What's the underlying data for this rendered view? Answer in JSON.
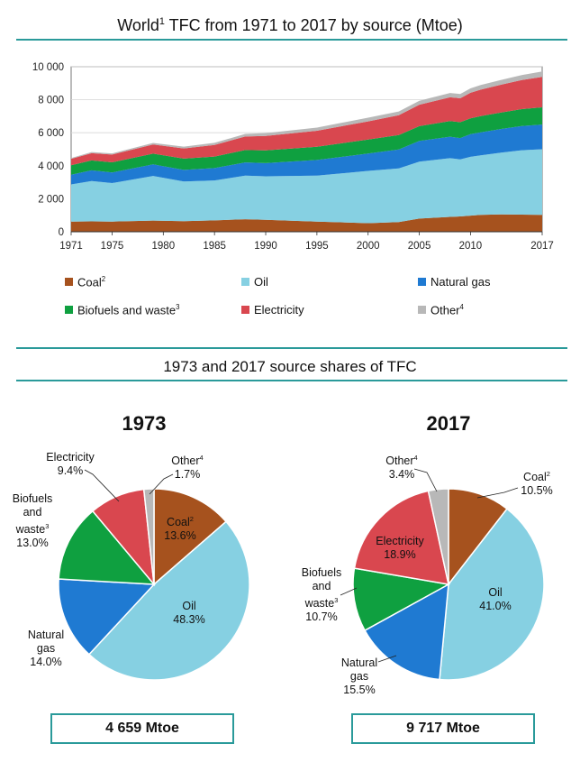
{
  "chart_data": [
    {
      "type": "area",
      "title": "World",
      "title_sup": "1",
      "title_rest": " TFC from 1971 to 2017 by source (Mtoe)",
      "x_ticks": [
        "1971",
        "1975",
        "1980",
        "1985",
        "1990",
        "1995",
        "2000",
        "2005",
        "2010",
        "2017"
      ],
      "y_ticks": [
        "10 000",
        "8 000",
        "6 000",
        "4 000",
        "2 000",
        "0"
      ],
      "ylim": [
        0,
        10000
      ],
      "xlim": [
        1971,
        2017
      ],
      "stacked": true,
      "x": [
        1971,
        1973,
        1975,
        1979,
        1982,
        1985,
        1988,
        1990,
        1995,
        2000,
        2003,
        2005,
        2008,
        2009,
        2010,
        2011,
        2013,
        2015,
        2017
      ],
      "series": [
        {
          "name": "Coal",
          "sup": "2",
          "color": "#a6521e",
          "values": [
            620,
            630,
            620,
            680,
            640,
            690,
            760,
            720,
            620,
            520,
            590,
            800,
            900,
            930,
            980,
            1030,
            1050,
            1040,
            1020
          ]
        },
        {
          "name": "Oil",
          "sup": "",
          "color": "#86d0e2",
          "values": [
            2250,
            2440,
            2330,
            2700,
            2410,
            2420,
            2640,
            2640,
            2780,
            3170,
            3250,
            3450,
            3560,
            3450,
            3560,
            3600,
            3750,
            3900,
            3980
          ]
        },
        {
          "name": "Natural gas",
          "sup": "",
          "color": "#1f7ad2",
          "values": [
            590,
            650,
            640,
            700,
            700,
            750,
            800,
            800,
            950,
            1050,
            1150,
            1250,
            1300,
            1300,
            1370,
            1400,
            1430,
            1470,
            1500
          ]
        },
        {
          "name": "Biofuels and waste",
          "sup": "3",
          "color": "#0fa040",
          "values": [
            570,
            600,
            620,
            650,
            680,
            700,
            750,
            770,
            800,
            850,
            870,
            900,
            950,
            960,
            960,
            980,
            1000,
            1020,
            1040
          ]
        },
        {
          "name": "Electricity",
          "sup": "",
          "color": "#d9474f",
          "values": [
            390,
            440,
            470,
            560,
            620,
            700,
            820,
            880,
            970,
            1100,
            1200,
            1300,
            1440,
            1450,
            1550,
            1600,
            1680,
            1760,
            1840
          ]
        },
        {
          "name": "Other",
          "sup": "4",
          "color": "#b8b8b8",
          "values": [
            50,
            70,
            70,
            90,
            110,
            130,
            160,
            170,
            190,
            220,
            230,
            240,
            260,
            260,
            270,
            280,
            290,
            300,
            330
          ]
        }
      ]
    },
    {
      "type": "pie",
      "title": "1973 and 2017 source shares of TFC",
      "year": "1973",
      "total": "4 659 Mtoe",
      "slices": [
        {
          "label": "Coal",
          "sup": "2",
          "value": 13.6,
          "value_text": "13.6%",
          "color": "#a6521e"
        },
        {
          "label": "Oil",
          "sup": "",
          "value": 48.3,
          "value_text": "48.3%",
          "color": "#86d0e2"
        },
        {
          "label": "Natural gas",
          "sup": "",
          "value": 14.0,
          "value_text": "14.0%",
          "color": "#1f7ad2"
        },
        {
          "label": "Biofuels and waste",
          "sup": "3",
          "value": 13.0,
          "value_text": "13.0%",
          "color": "#0fa040"
        },
        {
          "label": "Electricity",
          "sup": "",
          "value": 9.4,
          "value_text": "9.4%",
          "color": "#d9474f"
        },
        {
          "label": "Other",
          "sup": "4",
          "value": 1.7,
          "value_text": "1.7%",
          "color": "#b8b8b8"
        }
      ]
    },
    {
      "type": "pie",
      "year": "2017",
      "total": "9 717 Mtoe",
      "slices": [
        {
          "label": "Coal",
          "sup": "2",
          "value": 10.5,
          "value_text": "10.5%",
          "color": "#a6521e"
        },
        {
          "label": "Oil",
          "sup": "",
          "value": 41.0,
          "value_text": "41.0%",
          "color": "#86d0e2"
        },
        {
          "label": "Natural gas",
          "sup": "",
          "value": 15.5,
          "value_text": "15.5%",
          "color": "#1f7ad2"
        },
        {
          "label": "Biofuels and waste",
          "sup": "3",
          "value": 10.7,
          "value_text": "10.7%",
          "color": "#0fa040"
        },
        {
          "label": "Electricity",
          "sup": "",
          "value": 18.9,
          "value_text": "18.9%",
          "color": "#d9474f"
        },
        {
          "label": "Other",
          "sup": "4",
          "value": 3.4,
          "value_text": "3.4%",
          "color": "#b8b8b8"
        }
      ]
    }
  ],
  "labels_1973": {
    "electricity": "Electricity",
    "electricity_v": "9.4%",
    "other": "Other",
    "other_sup": "4",
    "other_v": "1.7%",
    "bio1": "Biofuels",
    "bio2": "and",
    "bio3": "waste",
    "bio_sup": "3",
    "bio_v": "13.0%",
    "coal": "Coal",
    "coal_sup": "2",
    "coal_v": "13.6%",
    "oil": "Oil",
    "oil_v": "48.3%",
    "gas1": "Natural",
    "gas2": "gas",
    "gas_v": "14.0%"
  },
  "labels_2017": {
    "other": "Other",
    "other_sup": "4",
    "other_v": "3.4%",
    "coal": "Coal",
    "coal_sup": "2",
    "coal_v": "10.5%",
    "electricity": "Electricity",
    "electricity_v": "18.9%",
    "bio1": "Biofuels",
    "bio2": "and",
    "bio3": "waste",
    "bio_sup": "3",
    "bio_v": "10.7%",
    "oil": "Oil",
    "oil_v": "41.0%",
    "gas1": "Natural",
    "gas2": "gas",
    "gas_v": "15.5%"
  }
}
